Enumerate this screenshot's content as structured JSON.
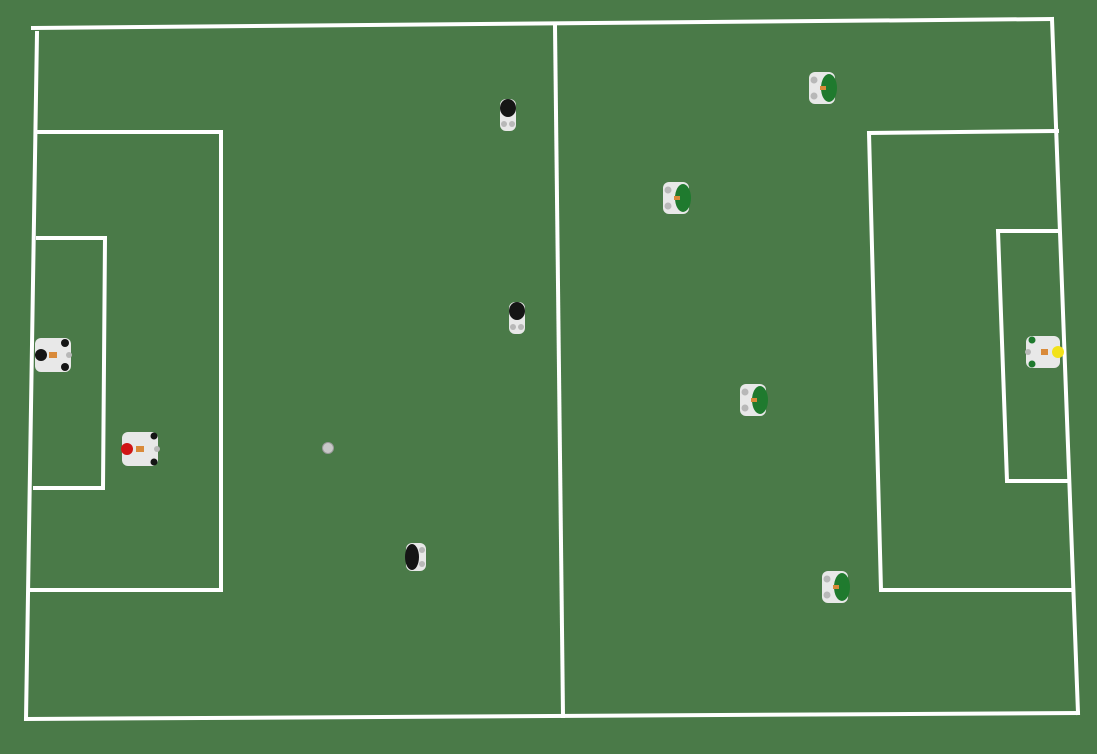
{
  "scene": {
    "type": "top-down robot soccer field",
    "colors": {
      "grass": "#4a7a48",
      "lines": "#ffffff",
      "ball": "#c8c8c8",
      "robot_body": "#e8e8e8",
      "robot_body_shadow": "#b8b8b8",
      "team_black": "#151515",
      "team_green": "#1f7a2e",
      "keeper_left_marker": "#d01515",
      "keeper_right_marker": "#f2e21a",
      "accent_orange": "#d98a3a"
    },
    "ball": {
      "name": "ball",
      "color": "#c8c8c8"
    },
    "team_black": {
      "name": "black-team",
      "players": [
        {
          "name": "robot-black-1",
          "role": "field",
          "facing": "up"
        },
        {
          "name": "robot-black-2",
          "role": "field",
          "facing": "up"
        },
        {
          "name": "robot-black-3",
          "role": "field",
          "facing": "left"
        },
        {
          "name": "robot-black-keeper",
          "role": "goalkeeper",
          "facing": "left"
        },
        {
          "name": "robot-red-defender",
          "role": "defender",
          "facing": "left"
        }
      ]
    },
    "team_green": {
      "name": "green-team",
      "players": [
        {
          "name": "robot-green-1",
          "role": "field",
          "facing": "right"
        },
        {
          "name": "robot-green-2",
          "role": "field",
          "facing": "right"
        },
        {
          "name": "robot-green-3",
          "role": "field",
          "facing": "right"
        },
        {
          "name": "robot-green-4",
          "role": "field",
          "facing": "right"
        },
        {
          "name": "robot-green-keeper",
          "role": "goalkeeper",
          "facing": "right"
        }
      ]
    }
  }
}
